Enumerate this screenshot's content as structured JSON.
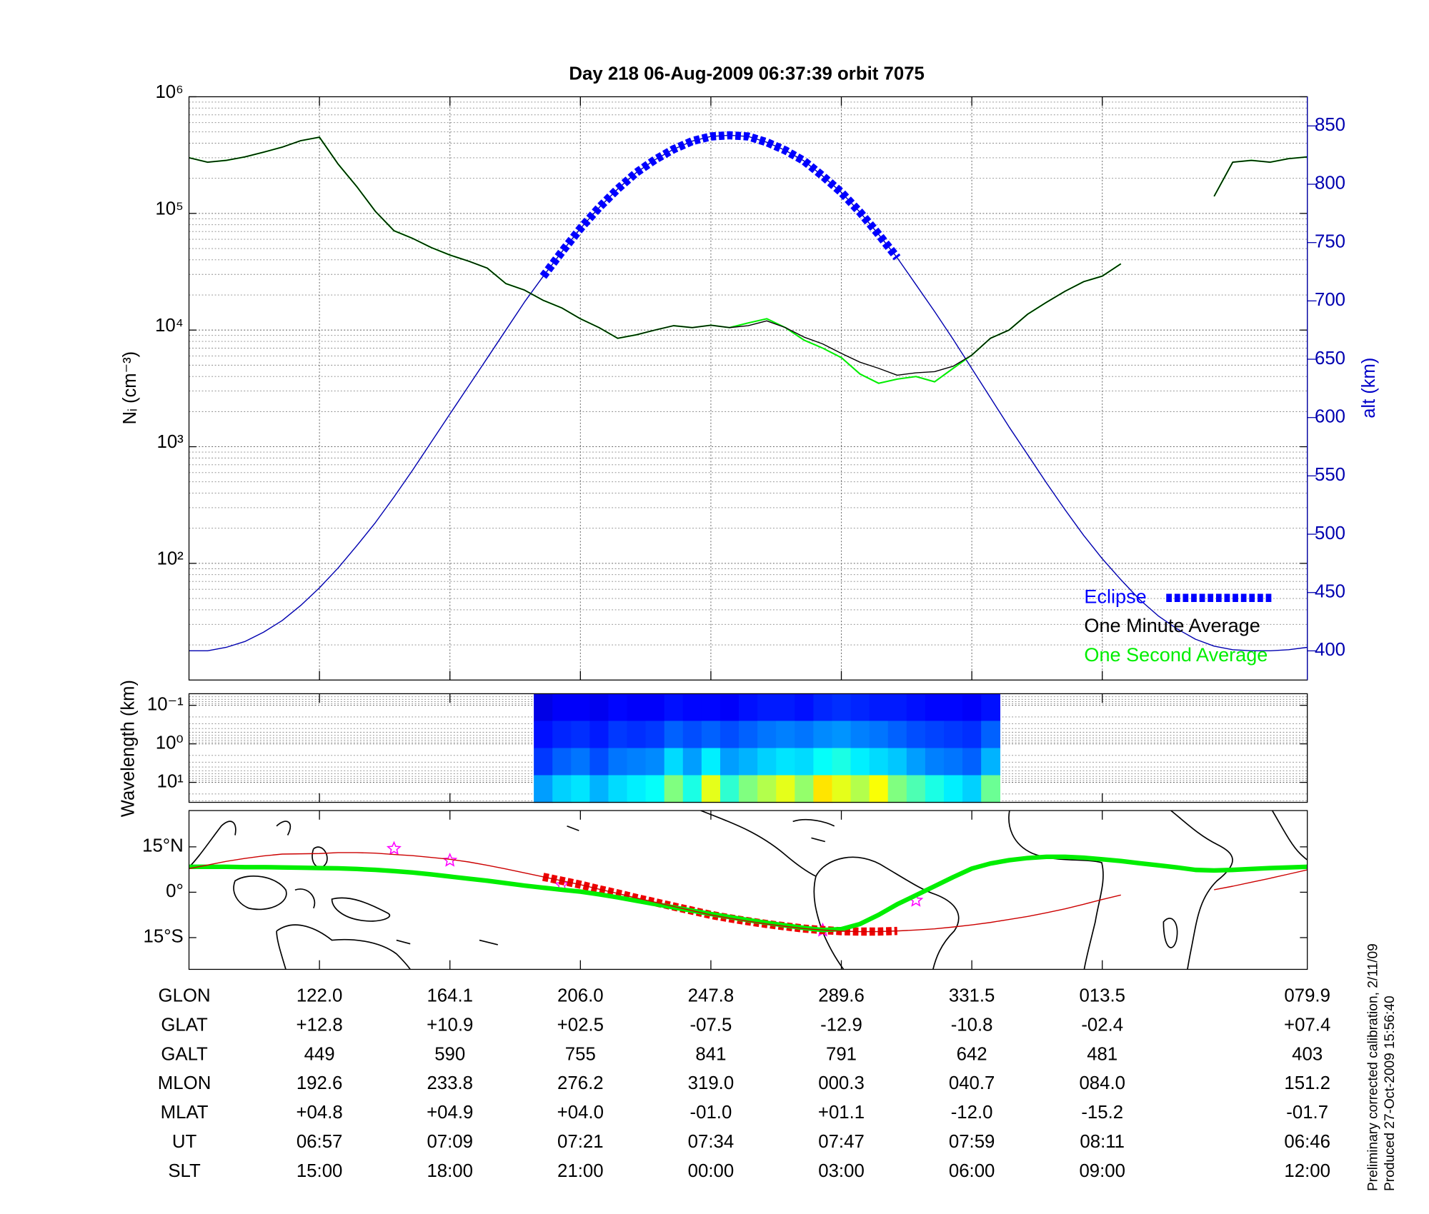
{
  "chart_data": [
    {
      "type": "line",
      "title": "Day 218  06-Aug-2009 06:37:39   orbit 7075",
      "ylabel": "Nᵢ (cm⁻³)",
      "y2label": "alt (km)",
      "log_scale": true,
      "grid": true,
      "legend": "lower right",
      "ylim": [
        10,
        1000000
      ],
      "yticks": [
        {
          "value": 100,
          "label": "10²"
        },
        {
          "value": 1000,
          "label": "10³"
        },
        {
          "value": 10000,
          "label": "10⁴"
        },
        {
          "value": 100000,
          "label": "10⁵"
        },
        {
          "value": 1000000,
          "label": "10⁶"
        }
      ],
      "y2lim": [
        375,
        875
      ],
      "y2ticks": [
        400,
        450,
        500,
        550,
        600,
        650,
        700,
        750,
        800,
        850
      ],
      "series": [
        {
          "name": "Eclipse",
          "color": "#0000ff",
          "axis": "y2",
          "style": "squares",
          "values": [
            null,
            null,
            null,
            null,
            null,
            null,
            null,
            null,
            null,
            null,
            null,
            null,
            null,
            null,
            null,
            null,
            null,
            null,
            null,
            721,
            742,
            762,
            780,
            796,
            810,
            821,
            830,
            837,
            841,
            842,
            841,
            836,
            829,
            820,
            807,
            793,
            776,
            757,
            737,
            null,
            null,
            null,
            null,
            null,
            null,
            null,
            null,
            null,
            null,
            null,
            null,
            null,
            null,
            null,
            null,
            null,
            null,
            null,
            null,
            null,
            null
          ]
        },
        {
          "name": "One Minute Average",
          "color": "#000000",
          "values": [
            300000,
            275000,
            285000,
            305000,
            335000,
            370000,
            420000,
            450000,
            265000,
            170000,
            104000,
            71000,
            61000,
            51000,
            44000,
            39000,
            34000,
            25000,
            22000,
            18000,
            15500,
            12500,
            10500,
            8500,
            9100,
            10000,
            10900,
            10500,
            11000,
            10500,
            10900,
            12000,
            10500,
            8700,
            7600,
            6300,
            5300,
            4700,
            4100,
            4300,
            4400,
            4900,
            6100,
            8500,
            10000,
            13700,
            17300,
            21500,
            26000,
            29000,
            37000,
            null,
            null,
            null,
            null,
            140000,
            275000,
            285000,
            275000,
            295000,
            305000
          ]
        },
        {
          "name": "One Second Average",
          "color": "#00ee00",
          "values": [
            300000,
            275000,
            285000,
            305000,
            335000,
            370000,
            420000,
            450000,
            265000,
            170000,
            104000,
            71000,
            61000,
            51000,
            44000,
            39000,
            34000,
            25000,
            22000,
            18000,
            15500,
            12500,
            10500,
            8500,
            9100,
            10000,
            10900,
            10500,
            11000,
            10500,
            11500,
            12500,
            10500,
            8200,
            7000,
            5800,
            4200,
            3500,
            3800,
            4000,
            3600,
            4700,
            6100,
            8500,
            10000,
            13700,
            17300,
            21500,
            26000,
            29000,
            37000,
            null,
            null,
            null,
            null,
            140000,
            275000,
            285000,
            275000,
            295000,
            305000
          ]
        },
        {
          "color": "#0000b0",
          "axis": "y2",
          "values": [
            400,
            400,
            403,
            408,
            416,
            426,
            439,
            454,
            471,
            490,
            510,
            532,
            555,
            579,
            603,
            627,
            651,
            675,
            699,
            721,
            742,
            762,
            780,
            796,
            810,
            821,
            830,
            837,
            841,
            842,
            841,
            836,
            829,
            820,
            807,
            793,
            776,
            757,
            737,
            714,
            691,
            667,
            642,
            617,
            592,
            568,
            544,
            521,
            499,
            479,
            461,
            444,
            430,
            419,
            410,
            404,
            401,
            400,
            400,
            401,
            403
          ]
        }
      ]
    },
    {
      "type": "heatmap",
      "ylabel": "Wavelength (km)",
      "log_scale": true,
      "grid": true,
      "ylim": [
        33,
        0.05
      ],
      "yticks": [
        {
          "value": 0.1,
          "label": "10⁻¹"
        },
        {
          "value": 1,
          "label": "10⁰"
        },
        {
          "value": 10,
          "label": "10¹"
        }
      ],
      "z": [
        [
          null,
          null,
          null,
          null,
          null,
          null,
          null,
          null,
          null,
          null,
          null,
          null,
          null,
          null,
          null,
          null,
          null,
          null,
          null,
          0.1,
          0.12,
          0.12,
          0.11,
          0.13,
          0.12,
          0.12,
          0.14,
          0.13,
          0.13,
          0.12,
          0.14,
          0.15,
          0.15,
          0.14,
          0.16,
          0.17,
          0.16,
          0.15,
          0.15,
          0.14,
          0.13,
          0.13,
          0.12,
          0.14,
          null,
          null,
          null,
          null,
          null,
          null,
          null,
          null,
          null,
          null,
          null,
          null,
          null,
          null,
          null,
          null,
          null
        ],
        [
          null,
          null,
          null,
          null,
          null,
          null,
          null,
          null,
          null,
          null,
          null,
          null,
          null,
          null,
          null,
          null,
          null,
          null,
          null,
          0.14,
          0.16,
          0.17,
          0.15,
          0.18,
          0.17,
          0.18,
          0.22,
          0.2,
          0.22,
          0.2,
          0.22,
          0.24,
          0.25,
          0.24,
          0.26,
          0.27,
          0.25,
          0.24,
          0.22,
          0.2,
          0.19,
          0.18,
          0.17,
          0.22,
          null,
          null,
          null,
          null,
          null,
          null,
          null,
          null,
          null,
          null,
          null,
          null,
          null,
          null,
          null,
          null,
          null
        ],
        [
          null,
          null,
          null,
          null,
          null,
          null,
          null,
          null,
          null,
          null,
          null,
          null,
          null,
          null,
          null,
          null,
          null,
          null,
          null,
          0.18,
          0.22,
          0.24,
          0.2,
          0.24,
          0.25,
          0.26,
          0.34,
          0.28,
          0.36,
          0.28,
          0.3,
          0.33,
          0.35,
          0.34,
          0.38,
          0.4,
          0.36,
          0.34,
          0.32,
          0.28,
          0.25,
          0.24,
          0.22,
          0.3,
          null,
          null,
          null,
          null,
          null,
          null,
          null,
          null,
          null,
          null,
          null,
          null,
          null,
          null,
          null,
          null,
          null
        ],
        [
          null,
          null,
          null,
          null,
          null,
          null,
          null,
          null,
          null,
          null,
          null,
          null,
          null,
          null,
          null,
          null,
          null,
          null,
          null,
          0.28,
          0.33,
          0.35,
          0.3,
          0.34,
          0.36,
          0.38,
          0.5,
          0.4,
          0.6,
          0.42,
          0.5,
          0.55,
          0.6,
          0.52,
          0.65,
          0.6,
          0.55,
          0.62,
          0.5,
          0.45,
          0.4,
          0.36,
          0.33,
          0.48,
          null,
          null,
          null,
          null,
          null,
          null,
          null,
          null,
          null,
          null,
          null,
          null,
          null,
          null,
          null,
          null,
          null
        ]
      ]
    },
    {
      "type": "line",
      "grid": false,
      "ylim": [
        -25.5,
        27
      ],
      "yticks": [
        {
          "value": -15,
          "label": "15°S"
        },
        {
          "value": 0,
          "label": "0°"
        },
        {
          "value": 15,
          "label": "15°N"
        }
      ],
      "series": [
        {
          "color": "#cc0000",
          "values": [
            7.8,
            9.0,
            10.2,
            11.2,
            12.0,
            12.6,
            12.7,
            12.8,
            13.1,
            13.1,
            12.9,
            12.5,
            12.1,
            11.5,
            10.9,
            10.0,
            8.9,
            7.7,
            6.4,
            5.1,
            3.8,
            2.5,
            1.0,
            -0.4,
            -1.9,
            -3.3,
            -4.7,
            -6.1,
            -7.5,
            -8.6,
            -9.6,
            -10.5,
            -11.3,
            -12.0,
            -12.5,
            -12.9,
            -13.0,
            -13.0,
            -12.8,
            -12.5,
            -12.1,
            -11.5,
            -10.8,
            -10.0,
            -9.0,
            -8.0,
            -6.8,
            -5.5,
            -4.0,
            -2.4,
            -0.9,
            null,
            null,
            null,
            null,
            0.8,
            2.0,
            3.3,
            4.6,
            6.0,
            7.4
          ]
        },
        {
          "color": "#00ee00",
          "style": "thick",
          "values": [
            8.4,
            8.4,
            8.4,
            8.3,
            8.3,
            8.2,
            8.1,
            8.0,
            7.9,
            7.7,
            7.4,
            7.0,
            6.5,
            5.9,
            5.2,
            4.5,
            3.8,
            3.0,
            2.2,
            1.5,
            0.8,
            0.2,
            -0.7,
            -1.7,
            -2.8,
            -3.9,
            -5.0,
            -6.1,
            -7.2,
            -8.2,
            -9.2,
            -10.1,
            -11.0,
            -11.8,
            -12.5,
            -12.2,
            -10.5,
            -7.5,
            -4.0,
            -1.0,
            2.0,
            5.0,
            7.8,
            9.5,
            10.6,
            11.3,
            11.7,
            11.7,
            11.4,
            10.9,
            10.3,
            9.6,
            8.9,
            8.2,
            7.4,
            7.2,
            7.4,
            7.7,
            8.0,
            8.2,
            8.4
          ]
        },
        {
          "color": "#ee0000",
          "style": "squares",
          "values": [
            null,
            null,
            null,
            null,
            null,
            null,
            null,
            null,
            null,
            null,
            null,
            null,
            null,
            null,
            null,
            null,
            null,
            null,
            null,
            5.1,
            3.8,
            2.5,
            1.0,
            -0.4,
            -1.9,
            -3.3,
            -4.7,
            -6.1,
            -7.5,
            -8.6,
            -9.6,
            -10.5,
            -11.3,
            -12.0,
            -12.5,
            -12.9,
            -13.0,
            -13.0,
            -12.8,
            null,
            null,
            null,
            null,
            null,
            null,
            null,
            null,
            null,
            null,
            null,
            null,
            null,
            null,
            null,
            null,
            null,
            null,
            null,
            null,
            null,
            null
          ]
        },
        {
          "color": "#ff00ff",
          "style": "stars",
          "values": [
            null,
            null,
            null,
            null,
            null,
            null,
            null,
            null,
            null,
            null,
            null,
            14.4,
            null,
            null,
            10.5,
            null,
            null,
            null,
            null,
            null,
            2.4,
            null,
            null,
            null,
            null,
            null,
            null,
            null,
            null,
            null,
            null,
            null,
            null,
            null,
            -12.6,
            null,
            null,
            null,
            null,
            -2.7,
            null,
            null,
            null,
            null,
            null,
            null,
            null,
            null,
            null,
            null,
            null,
            null,
            null,
            null,
            null,
            null,
            null,
            null,
            null,
            null,
            null
          ]
        }
      ]
    }
  ],
  "table": {
    "rows": [
      [
        "GLON",
        "122.0",
        "164.1",
        "206.0",
        "247.8",
        "289.6",
        "331.5",
        "013.5",
        "079.9"
      ],
      [
        "GLAT",
        "+12.8",
        "+10.9",
        "+02.5",
        "-07.5",
        "-12.9",
        "-10.8",
        "-02.4",
        "+07.4"
      ],
      [
        "GALT",
        "449",
        "590",
        "755",
        "841",
        "791",
        "642",
        "481",
        "403"
      ],
      [
        "MLON",
        "192.6",
        "233.8",
        "276.2",
        "319.0",
        "000.3",
        "040.7",
        "084.0",
        "151.2"
      ],
      [
        "MLAT",
        "+04.8",
        "+04.9",
        "+04.0",
        "-01.0",
        "+01.1",
        "-12.0",
        "-15.2",
        "-01.7"
      ],
      [
        "UT",
        "06:57",
        "07:09",
        "07:21",
        "07:34",
        "07:47",
        "07:59",
        "08:11",
        "06:46"
      ],
      [
        "SLT",
        "15:00",
        "18:00",
        "21:00",
        "00:00",
        "03:00",
        "06:00",
        "09:00",
        "12:00"
      ]
    ]
  },
  "notes": [
    "Preliminary corrected calibration, 2/11/09",
    "Produced 27-Oct-2009 15:56:40"
  ]
}
